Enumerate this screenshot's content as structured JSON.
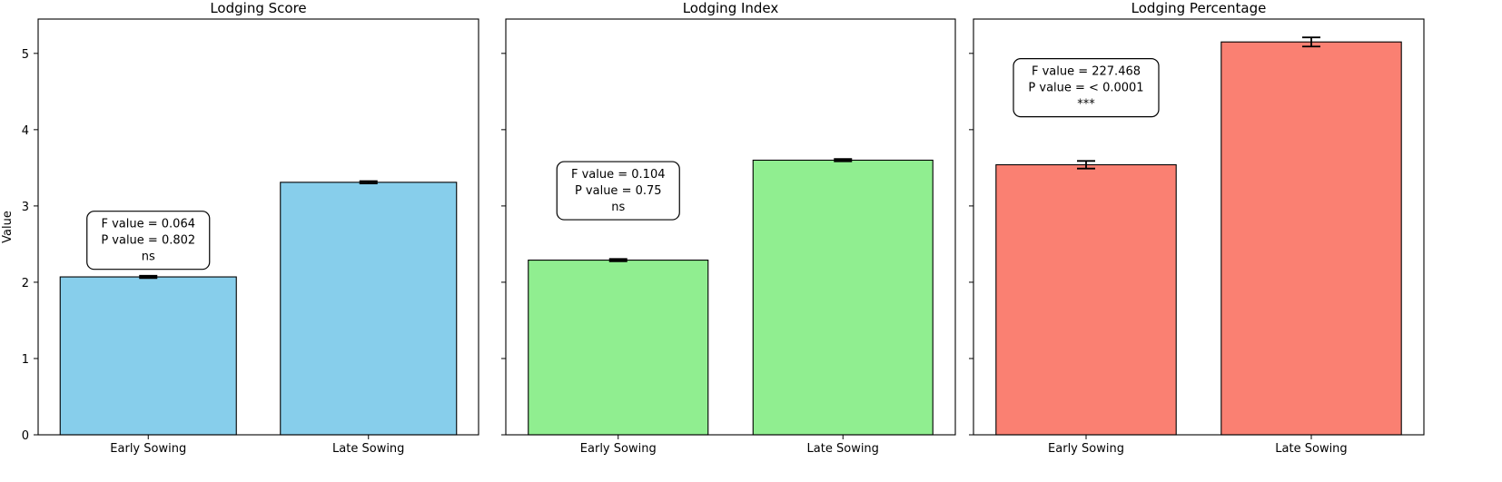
{
  "chart_data": [
    {
      "type": "bar",
      "title": "Lodging Score",
      "ylabel": "Value",
      "categories": [
        "Early Sowing",
        "Late Sowing"
      ],
      "values": [
        2.07,
        3.31
      ],
      "errors": [
        0.015,
        0.015
      ],
      "color": "#87CEEB",
      "ylim": [
        0,
        5.45
      ],
      "yticks": [
        0,
        1,
        2,
        3,
        4,
        5
      ],
      "annotation": {
        "lines": [
          "F value = 0.064",
          "P value = 0.802",
          "ns"
        ],
        "x": 0.5,
        "y": 2.55
      }
    },
    {
      "type": "bar",
      "title": "Lodging Index",
      "ylabel": "",
      "categories": [
        "Early Sowing",
        "Late Sowing"
      ],
      "values": [
        2.29,
        3.6
      ],
      "errors": [
        0.015,
        0.015
      ],
      "color": "#90EE90",
      "ylim": [
        0,
        5.45
      ],
      "yticks": [
        0,
        1,
        2,
        3,
        4,
        5
      ],
      "annotation": {
        "lines": [
          "F value = 0.104",
          "P value = 0.75",
          "ns"
        ],
        "x": 0.5,
        "y": 3.2
      }
    },
    {
      "type": "bar",
      "title": "Lodging Percentage",
      "ylabel": "",
      "categories": [
        "Early Sowing",
        "Late Sowing"
      ],
      "values": [
        3.54,
        5.15
      ],
      "errors": [
        0.05,
        0.06
      ],
      "color": "#FA8072",
      "ylim": [
        0,
        5.45
      ],
      "yticks": [
        0,
        1,
        2,
        3,
        4,
        5
      ],
      "annotation": {
        "lines": [
          "F value = 227.468",
          "P value = < 0.0001",
          "***"
        ],
        "x": 0.5,
        "y": 4.55
      }
    }
  ]
}
